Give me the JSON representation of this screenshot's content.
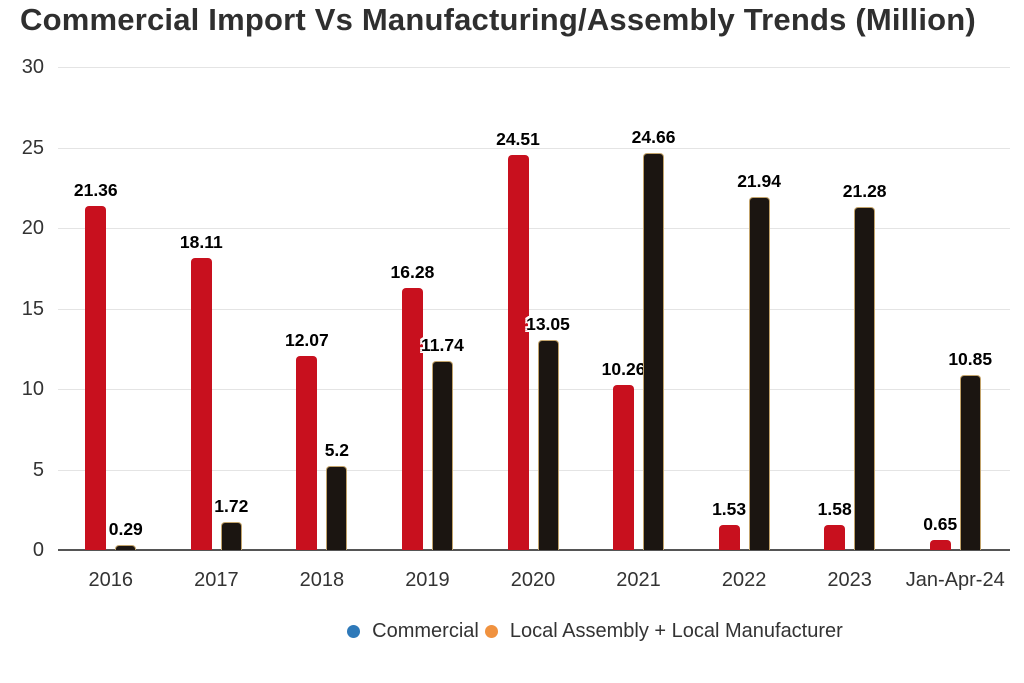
{
  "title": "Commercial Import Vs Manufacturing/Assembly Trends (Million)",
  "chart_data": {
    "type": "bar",
    "title": "Commercial Import Vs Manufacturing/Assembly Trends (Million)",
    "categories": [
      "2016",
      "2017",
      "2018",
      "2019",
      "2020",
      "2021",
      "2022",
      "2023",
      "Jan-Apr-24"
    ],
    "series": [
      {
        "name": "Commercial",
        "bar_color": "#c8101e",
        "values": [
          21.36,
          18.11,
          12.07,
          16.28,
          24.51,
          10.26,
          1.53,
          1.58,
          0.65
        ]
      },
      {
        "name": "Local Assembly + Local Manufacturer",
        "bar_color": "#1b1511",
        "bar_outline_color": "#c2a36b",
        "values": [
          0.29,
          1.72,
          5.2,
          11.74,
          13.05,
          24.66,
          21.94,
          21.28,
          10.85
        ]
      }
    ],
    "xlabel": "",
    "ylabel": "",
    "ylim": [
      0,
      30
    ],
    "yticks": [
      0,
      5,
      10,
      15,
      20,
      25,
      30
    ],
    "grid": true,
    "data_labels": true,
    "legend_position": "bottom",
    "legend": [
      {
        "label": "Commercial",
        "marker_color": "#2e79b9"
      },
      {
        "label": "Local Assembly + Local Manufacturer",
        "marker_color": "#f0923f"
      }
    ],
    "colors": {
      "grid_line": "#e4e4e4",
      "axis_line": "#555555",
      "title_text": "#2f2f2f",
      "tick_text": "#333333",
      "value_label_text": "#000000",
      "value_label_outline": "#ffffff"
    }
  }
}
